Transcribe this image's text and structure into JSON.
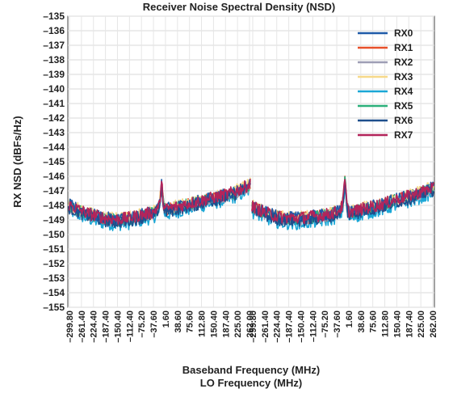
{
  "chart_data": {
    "type": "line",
    "title": "Receiver Noise Spectral Density (NSD)",
    "ylabel": "RX NSD (dBFs/Hz)",
    "xlabel": "Baseband Frequency (MHz)",
    "xlabel2": "LO Frequency (MHz)",
    "ylim": [
      -155,
      -135
    ],
    "yticks": [
      -135,
      -136,
      -137,
      -138,
      -139,
      -140,
      -141,
      -142,
      -143,
      -144,
      -145,
      -146,
      -147,
      -148,
      -149,
      -150,
      -151,
      -152,
      -153,
      -154,
      -155
    ],
    "ytick_labels": [
      "–135",
      "–136",
      "–137",
      "–138",
      "–139",
      "–140",
      "–141",
      "–142",
      "–143",
      "–144",
      "–145",
      "–146",
      "–147",
      "–148",
      "–149",
      "–150",
      "–151",
      "–152",
      "–153",
      "–154",
      "–155"
    ],
    "xtick_labels": [
      "–299.80",
      "–261.40",
      "–224.40",
      "–187.40",
      "–150.40",
      "–112.40",
      "–75.20",
      "–37.60",
      "1.60",
      "38.60",
      "75.60",
      "112.80",
      "150.40",
      "187.40",
      "225.00",
      "262.00",
      "–299.80",
      "–261.40",
      "–224.40",
      "–187.40",
      "–150.40",
      "–112.40",
      "–75.20",
      "–37.60",
      "1.60",
      "38.60",
      "75.60",
      "112.80",
      "150.40",
      "187.40",
      "225.00",
      "262.00"
    ],
    "grid": true,
    "legend_position": "top-right",
    "series": [
      {
        "name": "RX0",
        "color": "#1f5aa8"
      },
      {
        "name": "RX1",
        "color": "#e8502a"
      },
      {
        "name": "RX2",
        "color": "#9e9eb5"
      },
      {
        "name": "RX3",
        "color": "#f7d98a"
      },
      {
        "name": "RX4",
        "color": "#1aa7d6"
      },
      {
        "name": "RX5",
        "color": "#2bb07a"
      },
      {
        "name": "RX6",
        "color": "#1e4f8c"
      },
      {
        "name": "RX7",
        "color": "#b3245a"
      }
    ],
    "segments": [
      {
        "x_range": [
          -299.8,
          262.0
        ],
        "profile": [
          {
            "x": -299.8,
            "y": -148.0
          },
          {
            "x": -261.4,
            "y": -148.4
          },
          {
            "x": -224.4,
            "y": -148.7
          },
          {
            "x": -187.4,
            "y": -148.9
          },
          {
            "x": -150.4,
            "y": -149.0
          },
          {
            "x": -112.4,
            "y": -148.9
          },
          {
            "x": -75.2,
            "y": -148.7
          },
          {
            "x": -37.6,
            "y": -148.5
          },
          {
            "x": -20,
            "y": -148.1
          },
          {
            "x": -12,
            "y": -146.6
          },
          {
            "x": -5,
            "y": -148.2
          },
          {
            "x": 1.6,
            "y": -148.3
          },
          {
            "x": 38.6,
            "y": -148.1
          },
          {
            "x": 75.6,
            "y": -147.9
          },
          {
            "x": 112.8,
            "y": -147.7
          },
          {
            "x": 150.4,
            "y": -147.5
          },
          {
            "x": 187.4,
            "y": -147.3
          },
          {
            "x": 225.0,
            "y": -147.0
          },
          {
            "x": 262.0,
            "y": -146.6
          }
        ]
      },
      {
        "x_range": [
          -299.8,
          262.0
        ],
        "profile": [
          {
            "x": -299.8,
            "y": -148.1
          },
          {
            "x": -261.4,
            "y": -148.5
          },
          {
            "x": -224.4,
            "y": -148.8
          },
          {
            "x": -187.4,
            "y": -148.9
          },
          {
            "x": -150.4,
            "y": -148.9
          },
          {
            "x": -112.4,
            "y": -148.8
          },
          {
            "x": -75.2,
            "y": -148.7
          },
          {
            "x": -37.6,
            "y": -148.5
          },
          {
            "x": -20,
            "y": -148.1
          },
          {
            "x": -12,
            "y": -146.3
          },
          {
            "x": -5,
            "y": -148.3
          },
          {
            "x": 1.6,
            "y": -148.5
          },
          {
            "x": 38.6,
            "y": -148.3
          },
          {
            "x": 75.6,
            "y": -148.1
          },
          {
            "x": 112.8,
            "y": -147.9
          },
          {
            "x": 150.4,
            "y": -147.6
          },
          {
            "x": 187.4,
            "y": -147.4
          },
          {
            "x": 225.0,
            "y": -147.1
          },
          {
            "x": 262.0,
            "y": -146.8
          }
        ]
      }
    ]
  }
}
